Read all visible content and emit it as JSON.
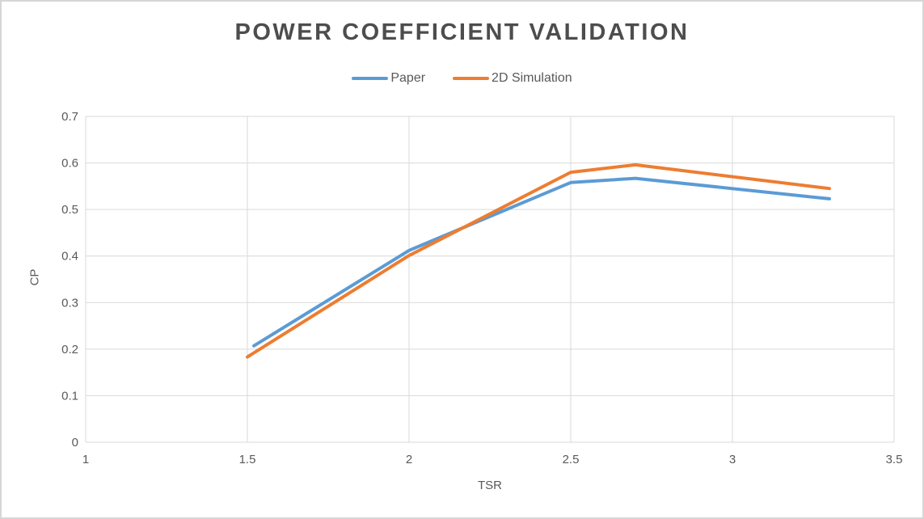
{
  "chart_data": {
    "type": "line",
    "title": "POWER COEFFICIENT VALIDATION",
    "xlabel": "TSR",
    "ylabel": "CP",
    "xlim": [
      1,
      3.5
    ],
    "ylim": [
      0,
      0.7
    ],
    "x_ticks": [
      1,
      1.5,
      2,
      2.5,
      3,
      3.5
    ],
    "x_tick_labels": [
      "1",
      "1.5",
      "2",
      "2.5",
      "3",
      "3.5"
    ],
    "y_ticks": [
      0,
      0.1,
      0.2,
      0.3,
      0.4,
      0.5,
      0.6,
      0.7
    ],
    "y_tick_labels": [
      "0",
      "0.1",
      "0.2",
      "0.3",
      "0.4",
      "0.5",
      "0.6",
      "0.7"
    ],
    "grid": true,
    "legend_position": "top",
    "series": [
      {
        "name": "Paper",
        "color": "#5B9BD5",
        "points": [
          [
            1.52,
            0.207
          ],
          [
            2.0,
            0.412
          ],
          [
            2.5,
            0.558
          ],
          [
            2.7,
            0.567
          ],
          [
            3.3,
            0.523
          ]
        ]
      },
      {
        "name": "2D Simulation",
        "color": "#ED7D31",
        "points": [
          [
            1.5,
            0.183
          ],
          [
            2.0,
            0.401
          ],
          [
            2.5,
            0.58
          ],
          [
            2.7,
            0.596
          ],
          [
            3.3,
            0.545
          ]
        ]
      }
    ]
  },
  "colors": {
    "grid": "#D9D9D9",
    "axis_text": "#595959",
    "title_text": "#4d4d4d",
    "background": "#ffffff"
  }
}
